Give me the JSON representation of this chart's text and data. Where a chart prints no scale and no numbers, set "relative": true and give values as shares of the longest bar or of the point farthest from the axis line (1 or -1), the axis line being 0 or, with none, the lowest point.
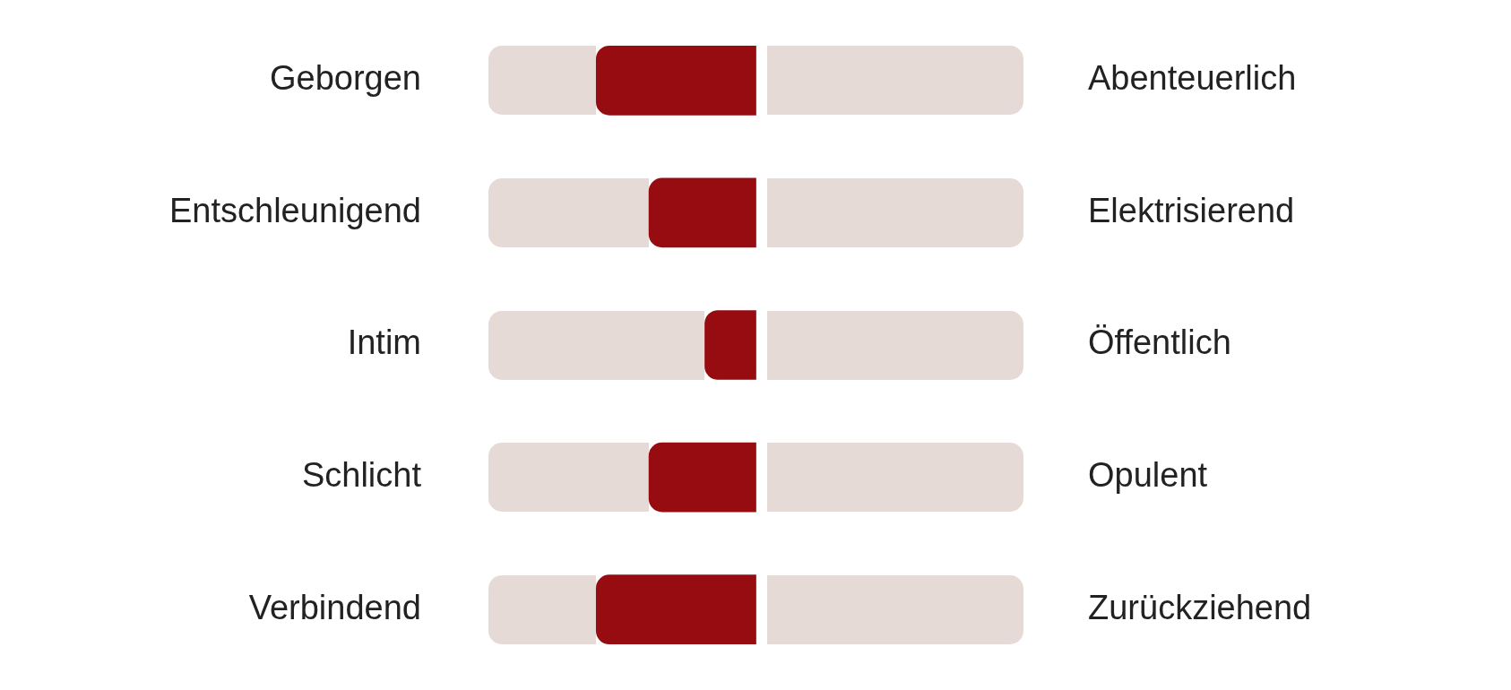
{
  "chart_data": {
    "type": "bar",
    "orientation": "horizontal",
    "relative": true,
    "categories": [
      "Geborgen",
      "Entschleunigend",
      "Intim",
      "Schlicht",
      "Verbindend"
    ],
    "values": [
      -1,
      -0.67,
      -0.32,
      -0.67,
      -1
    ],
    "color": "#960c10",
    "annotations": [
      "Abenteuerlich",
      "Elektrisierend",
      "Öffentlich",
      "Opulent",
      "Zurückziehend"
    ],
    "legend": false
  }
}
